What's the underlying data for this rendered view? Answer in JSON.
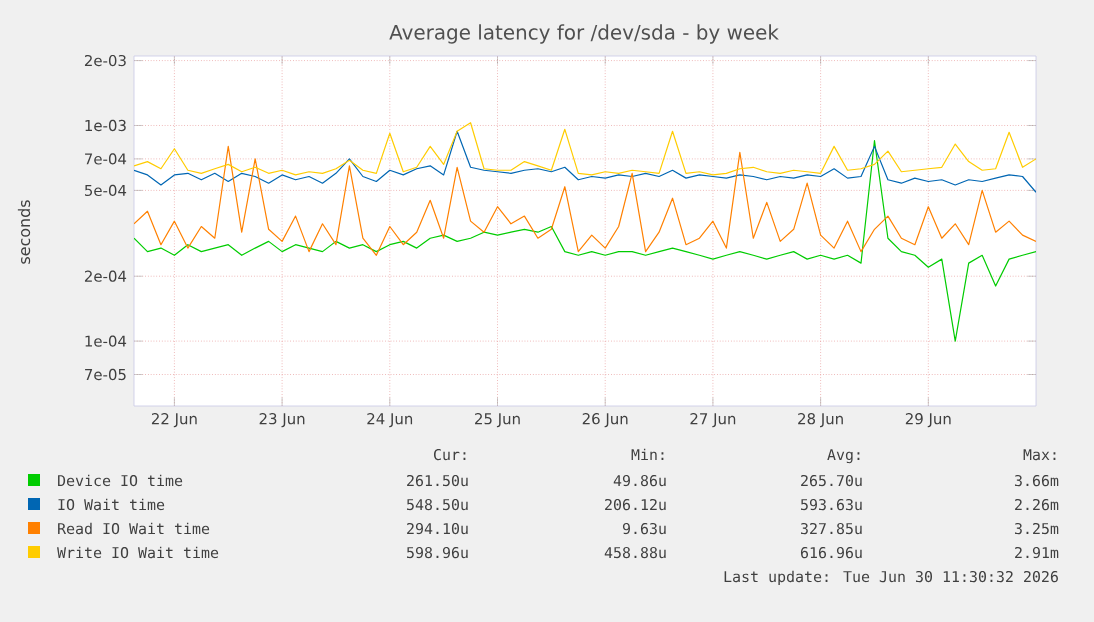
{
  "chart_data": {
    "type": "line",
    "title": "Average latency for /dev/sda - by week",
    "ylabel": "seconds",
    "log": "y",
    "grid": true,
    "legend": "bottom",
    "marker": "none",
    "line_style": "solid",
    "ylim": [
      5e-05,
      0.0021
    ],
    "yticks": [
      {
        "value": 7e-05,
        "label": "7e-05"
      },
      {
        "value": 0.0001,
        "label": "1e-04"
      },
      {
        "value": 0.0002,
        "label": "2e-04"
      },
      {
        "value": 0.0005,
        "label": "5e-04"
      },
      {
        "value": 0.0007,
        "label": "7e-04"
      },
      {
        "value": 0.001,
        "label": "1e-03"
      },
      {
        "value": 0.002,
        "label": "2e-03"
      }
    ],
    "xlim": [
      "2026-06-22T03:00",
      "2026-06-30T12:00"
    ],
    "xticks": [
      {
        "value": "2026-06-22T12:00",
        "label": "22 Jun"
      },
      {
        "value": "2026-06-23T12:00",
        "label": "23 Jun"
      },
      {
        "value": "2026-06-24T12:00",
        "label": "24 Jun"
      },
      {
        "value": "2026-06-25T12:00",
        "label": "25 Jun"
      },
      {
        "value": "2026-06-26T12:00",
        "label": "26 Jun"
      },
      {
        "value": "2026-06-27T12:00",
        "label": "27 Jun"
      },
      {
        "value": "2026-06-28T12:00",
        "label": "28 Jun"
      },
      {
        "value": "2026-06-29T12:00",
        "label": "29 Jun"
      }
    ],
    "x": [
      "2026-06-22T03:00",
      "2026-06-22T06:00",
      "2026-06-22T09:00",
      "2026-06-22T12:00",
      "2026-06-22T15:00",
      "2026-06-22T18:00",
      "2026-06-22T21:00",
      "2026-06-23T00:00",
      "2026-06-23T03:00",
      "2026-06-23T06:00",
      "2026-06-23T09:00",
      "2026-06-23T12:00",
      "2026-06-23T15:00",
      "2026-06-23T18:00",
      "2026-06-23T21:00",
      "2026-06-24T00:00",
      "2026-06-24T03:00",
      "2026-06-24T06:00",
      "2026-06-24T09:00",
      "2026-06-24T12:00",
      "2026-06-24T15:00",
      "2026-06-24T18:00",
      "2026-06-24T21:00",
      "2026-06-25T00:00",
      "2026-06-25T03:00",
      "2026-06-25T06:00",
      "2026-06-25T09:00",
      "2026-06-25T12:00",
      "2026-06-25T15:00",
      "2026-06-25T18:00",
      "2026-06-25T21:00",
      "2026-06-26T00:00",
      "2026-06-26T03:00",
      "2026-06-26T06:00",
      "2026-06-26T09:00",
      "2026-06-26T12:00",
      "2026-06-26T15:00",
      "2026-06-26T18:00",
      "2026-06-26T21:00",
      "2026-06-27T00:00",
      "2026-06-27T03:00",
      "2026-06-27T06:00",
      "2026-06-27T09:00",
      "2026-06-27T12:00",
      "2026-06-27T15:00",
      "2026-06-27T18:00",
      "2026-06-27T21:00",
      "2026-06-28T00:00",
      "2026-06-28T03:00",
      "2026-06-28T06:00",
      "2026-06-28T09:00",
      "2026-06-28T12:00",
      "2026-06-28T15:00",
      "2026-06-28T18:00",
      "2026-06-28T21:00",
      "2026-06-29T00:00",
      "2026-06-29T03:00",
      "2026-06-29T06:00",
      "2026-06-29T09:00",
      "2026-06-29T12:00",
      "2026-06-29T15:00",
      "2026-06-29T18:00",
      "2026-06-29T21:00",
      "2026-06-30T00:00",
      "2026-06-30T03:00",
      "2026-06-30T06:00",
      "2026-06-30T09:00",
      "2026-06-30T12:00"
    ],
    "series": [
      {
        "name": "Device IO time",
        "color": "#00cc00",
        "values": [
          0.0003,
          0.00026,
          0.00027,
          0.00025,
          0.00028,
          0.00026,
          0.00027,
          0.00028,
          0.00025,
          0.00027,
          0.00029,
          0.00026,
          0.00028,
          0.00027,
          0.00026,
          0.00029,
          0.00027,
          0.00028,
          0.00026,
          0.00028,
          0.00029,
          0.00027,
          0.0003,
          0.00031,
          0.00029,
          0.0003,
          0.00032,
          0.00031,
          0.00032,
          0.00033,
          0.00032,
          0.00034,
          0.00026,
          0.00025,
          0.00026,
          0.00025,
          0.00026,
          0.00026,
          0.00025,
          0.00026,
          0.00027,
          0.00026,
          0.00025,
          0.00024,
          0.00025,
          0.00026,
          0.00025,
          0.00024,
          0.00025,
          0.00026,
          0.00024,
          0.00025,
          0.00024,
          0.00025,
          0.00023,
          0.00085,
          0.0003,
          0.00026,
          0.00025,
          0.00022,
          0.00024,
          0.0001,
          0.00023,
          0.00025,
          0.00018,
          0.00024,
          0.00025,
          0.00026
        ]
      },
      {
        "name": "IO Wait time",
        "color": "#0066b3",
        "values": [
          0.00062,
          0.00059,
          0.00053,
          0.00059,
          0.0006,
          0.00056,
          0.0006,
          0.00055,
          0.0006,
          0.00058,
          0.00054,
          0.00059,
          0.00056,
          0.00058,
          0.00054,
          0.0006,
          0.0007,
          0.00058,
          0.00055,
          0.00062,
          0.00059,
          0.00063,
          0.00065,
          0.00059,
          0.00094,
          0.00064,
          0.00062,
          0.00061,
          0.0006,
          0.00062,
          0.00063,
          0.00061,
          0.00064,
          0.00056,
          0.00058,
          0.00057,
          0.00059,
          0.00058,
          0.0006,
          0.00058,
          0.00062,
          0.00057,
          0.00059,
          0.00058,
          0.00057,
          0.00059,
          0.00058,
          0.00056,
          0.00058,
          0.00057,
          0.00059,
          0.00058,
          0.00063,
          0.00057,
          0.00058,
          0.0008,
          0.00056,
          0.00054,
          0.00057,
          0.00055,
          0.00056,
          0.00053,
          0.00056,
          0.00055,
          0.00057,
          0.00059,
          0.00058,
          0.00049
        ]
      },
      {
        "name": "Read IO Wait time",
        "color": "#ff8000",
        "values": [
          0.00035,
          0.0004,
          0.00028,
          0.00036,
          0.00027,
          0.00034,
          0.0003,
          0.0008,
          0.00032,
          0.0007,
          0.00033,
          0.00029,
          0.00038,
          0.00026,
          0.00035,
          0.00028,
          0.00065,
          0.0003,
          0.00025,
          0.00034,
          0.00028,
          0.00032,
          0.00045,
          0.0003,
          0.00064,
          0.00036,
          0.00032,
          0.00042,
          0.00035,
          0.00038,
          0.0003,
          0.00033,
          0.00052,
          0.00026,
          0.00031,
          0.00027,
          0.00034,
          0.0006,
          0.00026,
          0.00032,
          0.00046,
          0.00028,
          0.0003,
          0.00036,
          0.00027,
          0.00075,
          0.0003,
          0.00044,
          0.00029,
          0.00033,
          0.00054,
          0.00031,
          0.00027,
          0.00036,
          0.00026,
          0.00033,
          0.00038,
          0.0003,
          0.00028,
          0.00042,
          0.0003,
          0.00035,
          0.00028,
          0.0005,
          0.00032,
          0.00036,
          0.00031,
          0.00029
        ]
      },
      {
        "name": "Write IO Wait time",
        "color": "#ffcc00",
        "values": [
          0.00065,
          0.00068,
          0.00063,
          0.00078,
          0.00062,
          0.0006,
          0.00063,
          0.00066,
          0.00061,
          0.00064,
          0.0006,
          0.00062,
          0.00059,
          0.00061,
          0.0006,
          0.00063,
          0.00069,
          0.00062,
          0.0006,
          0.00092,
          0.00061,
          0.00064,
          0.0008,
          0.00066,
          0.00094,
          0.00103,
          0.00063,
          0.00062,
          0.00062,
          0.00068,
          0.00065,
          0.00062,
          0.00096,
          0.0006,
          0.00059,
          0.00061,
          0.0006,
          0.00062,
          0.00061,
          0.0006,
          0.00094,
          0.0006,
          0.00061,
          0.00059,
          0.0006,
          0.00063,
          0.00064,
          0.00061,
          0.0006,
          0.00062,
          0.00061,
          0.0006,
          0.0008,
          0.00062,
          0.00063,
          0.00066,
          0.00076,
          0.00061,
          0.00062,
          0.00063,
          0.00064,
          0.00082,
          0.00068,
          0.00062,
          0.00063,
          0.00093,
          0.00064,
          0.0007
        ]
      }
    ],
    "annotations": [
      "Cur:",
      "Min:",
      "Avg:",
      "Max:",
      "261.50u",
      "49.86u",
      "265.70u",
      "3.66m",
      "548.50u",
      "206.12u",
      "593.63u",
      "2.26m",
      "294.10u",
      "9.63u",
      "327.85u",
      "3.25m",
      "598.96u",
      "458.88u",
      "616.96u",
      "2.91m",
      "Last update: Tue Jun 30 11:30:32 2026"
    ]
  }
}
